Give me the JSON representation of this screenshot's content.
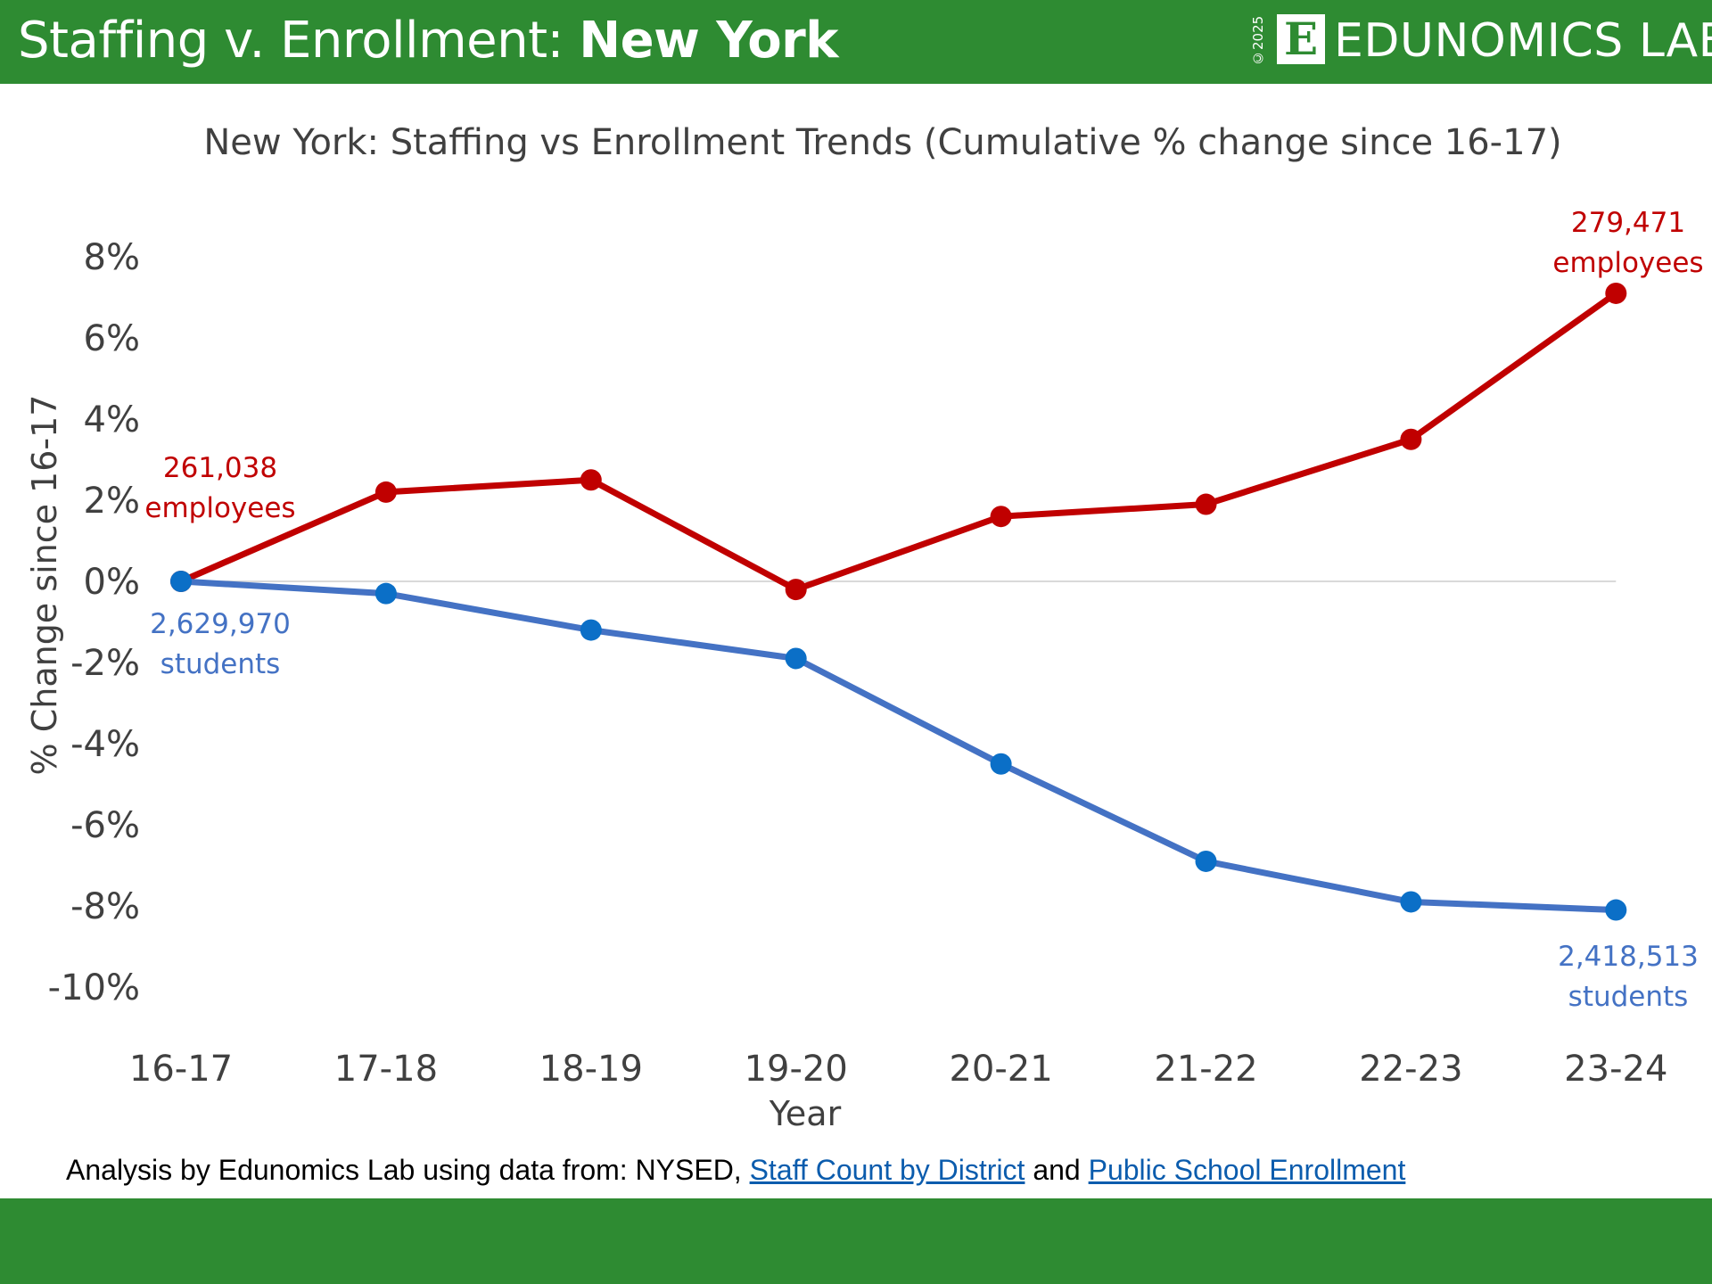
{
  "header": {
    "title_prefix": "Staffing v. Enrollment: ",
    "title_bold": "New York",
    "logo_year": "©2025",
    "logo_letter": "E",
    "logo_text": "EDUNOMICS LAB"
  },
  "footer": {
    "source_text": "Analysis by Edunomics Lab using data from: NYSED, ",
    "link1": "Staff Count by District",
    "and_text": " and ",
    "link2": "Public School Enrollment"
  },
  "colors": {
    "brand_green": "#2e8b32",
    "staff_red": "#c00000",
    "students_blue": "#4472c4",
    "marker_blue": "#0b6fc7"
  },
  "chart_data": {
    "type": "line",
    "title": "New York: Staffing vs Enrollment Trends (Cumulative % change since 16-17)",
    "xlabel": "Year",
    "ylabel": "% Change since 16-17",
    "categories": [
      "16-17",
      "17-18",
      "18-19",
      "19-20",
      "20-21",
      "21-22",
      "22-23",
      "23-24"
    ],
    "ylim": [
      -10,
      8
    ],
    "yticks": [
      "8%",
      "6%",
      "4%",
      "2%",
      "0%",
      "-2%",
      "-4%",
      "-6%",
      "-8%",
      "-10%"
    ],
    "ytick_values": [
      8,
      6,
      4,
      2,
      0,
      -2,
      -4,
      -6,
      -8,
      -10
    ],
    "series": [
      {
        "key": "staff",
        "values": [
          0.0,
          2.2,
          2.5,
          -0.2,
          1.6,
          1.9,
          3.5,
          7.1
        ]
      },
      {
        "key": "students",
        "values": [
          0.0,
          -0.3,
          -1.2,
          -1.9,
          -4.5,
          -6.9,
          -7.9,
          -8.1
        ]
      }
    ],
    "annotations": {
      "staff_start": [
        "261,038",
        "employees"
      ],
      "staff_end": [
        "279,471",
        "employees"
      ],
      "students_start": [
        "2,629,970",
        "students"
      ],
      "students_end": [
        "2,418,513",
        "students"
      ]
    }
  }
}
